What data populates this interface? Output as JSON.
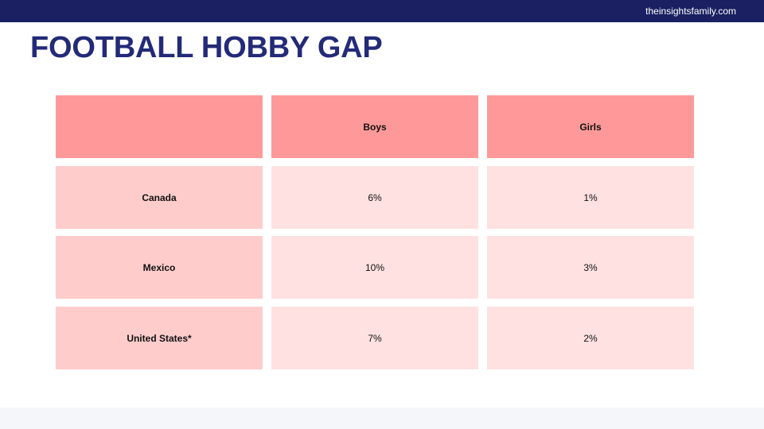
{
  "header": {
    "brand": "theinsightsfamily.com",
    "title": "FOOTBALL HOBBY GAP"
  },
  "colors": {
    "topbar": "#1a2061",
    "title": "#232a78",
    "header_fill": "#ff9999",
    "rowhead_fill": "#ffcccc",
    "cell_fill": "#ffe1e1"
  },
  "chart_data": {
    "type": "table",
    "columns": [
      "",
      "Boys",
      "Girls"
    ],
    "rows": [
      {
        "label": "Canada",
        "values": [
          "6%",
          "1%"
        ]
      },
      {
        "label": "Mexico",
        "values": [
          "10%",
          "3%"
        ]
      },
      {
        "label": "United States*",
        "values": [
          "7%",
          "2%"
        ]
      }
    ]
  }
}
